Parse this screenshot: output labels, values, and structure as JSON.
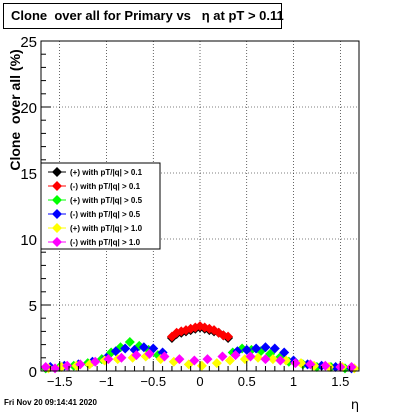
{
  "title": "Clone  over all for Primary vs   η at pT > 0.11",
  "footer": "Fri Nov 20 09:14:41 2020",
  "chart_data": {
    "type": "scatter",
    "title": "Clone  over all for Primary vs   η at pT > 0.11",
    "xlabel": "η",
    "ylabel": "Clone  over all (%)",
    "xlim": [
      -1.7,
      1.7
    ],
    "ylim": [
      0,
      25
    ],
    "xticks": [
      -1.5,
      -1,
      -0.5,
      0,
      0.5,
      1,
      1.5
    ],
    "xtick_labels": [
      "−1.5",
      "−1",
      "−0.5",
      "0",
      "0.5",
      "1",
      "1.5"
    ],
    "yticks": [
      0,
      5,
      10,
      15,
      20,
      25
    ],
    "ytick_labels": [
      "0",
      "5",
      "10",
      "15",
      "20",
      "25"
    ],
    "grid": true,
    "legend_position": "left-middle",
    "series": [
      {
        "name": "(+) with pT/|q| > 0.1",
        "color": "#000000",
        "x": [
          -0.3,
          -0.25,
          -0.2,
          -0.15,
          -0.1,
          -0.05,
          0.0,
          0.05,
          0.1,
          0.15,
          0.2,
          0.25,
          0.3
        ],
        "y": [
          2.5,
          2.8,
          2.9,
          3.0,
          3.1,
          3.2,
          3.3,
          3.2,
          3.1,
          3.0,
          2.9,
          2.7,
          2.5
        ]
      },
      {
        "name": "(-) with pT/|q| > 0.1",
        "color": "#ff0000",
        "x": [
          -0.3,
          -0.25,
          -0.2,
          -0.15,
          -0.1,
          -0.05,
          0.0,
          0.05,
          0.1,
          0.15,
          0.2,
          0.25,
          0.3
        ],
        "y": [
          2.6,
          2.9,
          3.0,
          3.1,
          3.2,
          3.3,
          3.4,
          3.3,
          3.2,
          3.1,
          2.9,
          2.7,
          2.6
        ]
      },
      {
        "name": "(+) with pT/|q| > 0.5",
        "color": "#00ff00",
        "x": [
          -1.65,
          -1.5,
          -1.35,
          -1.2,
          -1.05,
          -0.95,
          -0.85,
          -0.75,
          -0.65,
          -0.55,
          -0.45,
          0.35,
          0.45,
          0.55,
          0.65,
          0.75,
          0.85,
          0.95,
          1.1,
          1.25,
          1.4,
          1.55
        ],
        "y": [
          0.2,
          0.3,
          0.4,
          0.6,
          0.9,
          1.4,
          1.8,
          2.2,
          1.9,
          1.6,
          1.2,
          1.4,
          1.7,
          1.6,
          1.5,
          1.3,
          1.0,
          0.7,
          0.5,
          0.3,
          0.3,
          0.2
        ]
      },
      {
        "name": "(-) with pT/|q| > 0.5",
        "color": "#0000ff",
        "x": [
          -1.6,
          -1.45,
          -1.3,
          -1.15,
          -1.0,
          -0.9,
          -0.8,
          -0.7,
          -0.6,
          -0.5,
          -0.4,
          0.4,
          0.5,
          0.6,
          0.7,
          0.8,
          0.9,
          1.0,
          1.15,
          1.3,
          1.45,
          1.62
        ],
        "y": [
          0.3,
          0.4,
          0.5,
          0.7,
          1.0,
          1.5,
          1.7,
          1.6,
          1.8,
          1.7,
          1.4,
          1.5,
          1.6,
          1.7,
          1.8,
          1.7,
          1.4,
          0.8,
          0.5,
          0.4,
          0.3,
          0.2
        ]
      },
      {
        "name": "(+) with pT/|q| > 1.0",
        "color": "#ffff00",
        "x": [
          -1.62,
          -1.48,
          -1.32,
          -1.18,
          -1.02,
          -0.88,
          -0.72,
          -0.58,
          -0.42,
          -0.28,
          -0.12,
          0.02,
          0.18,
          0.32,
          0.48,
          0.62,
          0.78,
          0.92,
          1.08,
          1.22,
          1.38,
          1.52,
          1.65
        ],
        "y": [
          0.2,
          0.3,
          0.4,
          0.5,
          0.8,
          0.9,
          1.0,
          1.1,
          0.9,
          0.7,
          0.5,
          0.4,
          0.6,
          0.8,
          0.9,
          1.0,
          0.9,
          0.8,
          0.6,
          0.4,
          0.3,
          0.3,
          0.2
        ]
      },
      {
        "name": "(-) with pT/|q| > 1.0",
        "color": "#ff00ff",
        "x": [
          -1.65,
          -1.55,
          -1.42,
          -1.28,
          -1.12,
          -0.98,
          -0.84,
          -0.68,
          -0.54,
          -0.38,
          -0.22,
          -0.06,
          0.08,
          0.24,
          0.38,
          0.54,
          0.7,
          0.86,
          1.02,
          1.18,
          1.34,
          1.5,
          1.62
        ],
        "y": [
          0.3,
          0.2,
          0.4,
          0.5,
          0.7,
          0.9,
          1.0,
          1.2,
          1.3,
          1.1,
          0.9,
          0.8,
          0.9,
          1.1,
          1.2,
          1.1,
          0.9,
          0.8,
          0.6,
          0.5,
          0.4,
          0.3,
          0.3
        ]
      }
    ]
  }
}
